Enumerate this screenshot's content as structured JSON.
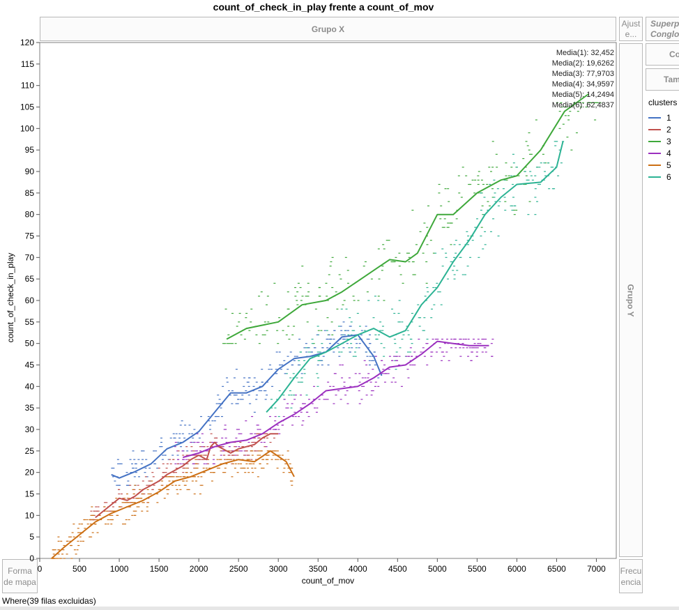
{
  "window": {
    "group_x": "Grupo X",
    "group_y": "Grupo Y",
    "ajuste": "Ajust e...",
    "forma_de_mapa": "Forma de mapa",
    "frecuencia": "Frecu encia",
    "superponer": "Superpo Conglo",
    "right_button_1": "Co",
    "right_button_2": "Tam",
    "where_text": "Where(39 filas excluidas)"
  },
  "colors": {
    "1": "#4472c4",
    "2": "#c0504d",
    "3": "#3ea83a",
    "4": "#9b2fbf",
    "5": "#cc6f14",
    "6": "#2cb394"
  },
  "chart_data": {
    "type": "scatter",
    "title": "count_of_check_in_play frente a count_of_mov",
    "xlabel": "count_of_mov",
    "ylabel": "count_of_check_in_play",
    "xlim": [
      0,
      7250
    ],
    "ylim": [
      0,
      120
    ],
    "x_ticks": [
      0,
      500,
      1000,
      1500,
      2000,
      2500,
      3000,
      3500,
      4000,
      4500,
      5000,
      5500,
      6000,
      6500,
      7000
    ],
    "y_ticks": [
      0,
      5,
      10,
      15,
      20,
      25,
      30,
      35,
      40,
      45,
      50,
      55,
      60,
      65,
      70,
      75,
      80,
      85,
      90,
      95,
      100,
      105,
      110,
      115,
      120
    ],
    "grid": false,
    "legend_title": "clusters",
    "legend_position": "right",
    "annotations": [
      "Media(1): 32,452",
      "Media(2): 19,6262",
      "Media(3): 77,9703",
      "Media(4): 34,9597",
      "Media(5): 14,2494",
      "Media(6): 62,4837"
    ],
    "series": [
      {
        "name": "1",
        "x_range": [
          900,
          4300
        ],
        "y_range": [
          17,
          55
        ],
        "smoother": [
          [
            900,
            19.5
          ],
          [
            1000,
            18.7
          ],
          [
            1200,
            20.2
          ],
          [
            1400,
            22
          ],
          [
            1600,
            25.5
          ],
          [
            1800,
            27
          ],
          [
            2000,
            29.5
          ],
          [
            2200,
            34
          ],
          [
            2400,
            38.5
          ],
          [
            2600,
            38.5
          ],
          [
            2800,
            40
          ],
          [
            3000,
            44
          ],
          [
            3200,
            46.5
          ],
          [
            3400,
            47
          ],
          [
            3600,
            48
          ],
          [
            3800,
            51.5
          ],
          [
            4000,
            52
          ],
          [
            4200,
            47
          ],
          [
            4300,
            42.5
          ]
        ]
      },
      {
        "name": "2",
        "x_range": [
          600,
          3000
        ],
        "y_range": [
          9,
          29
        ],
        "smoother": [
          [
            700,
            9.5
          ],
          [
            900,
            12.5
          ],
          [
            1000,
            14
          ],
          [
            1100,
            13.5
          ],
          [
            1200,
            14.5
          ],
          [
            1300,
            16
          ],
          [
            1400,
            17
          ],
          [
            1500,
            18
          ],
          [
            1600,
            19.5
          ],
          [
            1700,
            20.5
          ],
          [
            1800,
            21.5
          ],
          [
            1900,
            23
          ],
          [
            2000,
            24
          ],
          [
            2100,
            23
          ],
          [
            2150,
            26
          ],
          [
            2200,
            27
          ],
          [
            2250,
            26
          ],
          [
            2300,
            25.5
          ],
          [
            2400,
            24.5
          ],
          [
            2500,
            25.5
          ],
          [
            2600,
            26
          ],
          [
            2700,
            26.5
          ],
          [
            2800,
            28
          ],
          [
            2900,
            29
          ],
          [
            3000,
            29
          ]
        ]
      },
      {
        "name": "3",
        "x_range": [
          2300,
          7100
        ],
        "y_range": [
          50,
          106
        ],
        "smoother": [
          [
            2350,
            51
          ],
          [
            2600,
            53.5
          ],
          [
            3000,
            55
          ],
          [
            3300,
            59
          ],
          [
            3600,
            60
          ],
          [
            3800,
            62
          ],
          [
            4000,
            64.5
          ],
          [
            4200,
            67
          ],
          [
            4400,
            69.5
          ],
          [
            4600,
            69
          ],
          [
            4750,
            71
          ],
          [
            5000,
            80
          ],
          [
            5200,
            80
          ],
          [
            5500,
            85
          ],
          [
            5800,
            88
          ],
          [
            6000,
            89
          ],
          [
            6300,
            95
          ],
          [
            6600,
            104
          ],
          [
            6900,
            108
          ]
        ]
      },
      {
        "name": "4",
        "x_range": [
          1700,
          5700
        ],
        "y_range": [
          22,
          51
        ],
        "smoother": [
          [
            1800,
            23.5
          ],
          [
            2000,
            24.5
          ],
          [
            2200,
            26
          ],
          [
            2400,
            27
          ],
          [
            2600,
            27.5
          ],
          [
            2800,
            29
          ],
          [
            3000,
            31.5
          ],
          [
            3200,
            33.5
          ],
          [
            3400,
            36
          ],
          [
            3600,
            39
          ],
          [
            3800,
            39.5
          ],
          [
            4000,
            40
          ],
          [
            4200,
            42
          ],
          [
            4400,
            44.5
          ],
          [
            4600,
            45
          ],
          [
            4800,
            47.5
          ],
          [
            5000,
            50.5
          ],
          [
            5200,
            50
          ],
          [
            5400,
            49.5
          ],
          [
            5650,
            49.5
          ]
        ]
      },
      {
        "name": "5",
        "x_range": [
          150,
          3200
        ],
        "y_range": [
          0,
          25
        ],
        "smoother": [
          [
            150,
            0
          ],
          [
            300,
            2.5
          ],
          [
            500,
            5.5
          ],
          [
            700,
            8.5
          ],
          [
            900,
            10.5
          ],
          [
            1100,
            12
          ],
          [
            1300,
            13.5
          ],
          [
            1500,
            15.5
          ],
          [
            1700,
            18
          ],
          [
            1900,
            19
          ],
          [
            2100,
            20.5
          ],
          [
            2300,
            22
          ],
          [
            2500,
            23
          ],
          [
            2700,
            22.5
          ],
          [
            2900,
            25
          ],
          [
            3100,
            22.5
          ],
          [
            3200,
            19
          ]
        ]
      },
      {
        "name": "6",
        "x_range": [
          2850,
          6600
        ],
        "y_range": [
          33,
          97
        ],
        "smoother": [
          [
            2850,
            34
          ],
          [
            3000,
            37
          ],
          [
            3200,
            42
          ],
          [
            3400,
            46.5
          ],
          [
            3600,
            48
          ],
          [
            3800,
            50
          ],
          [
            4000,
            52
          ],
          [
            4200,
            53.5
          ],
          [
            4400,
            51.5
          ],
          [
            4600,
            53
          ],
          [
            4800,
            59
          ],
          [
            5000,
            63
          ],
          [
            5200,
            69
          ],
          [
            5400,
            74
          ],
          [
            5600,
            80
          ],
          [
            5800,
            84
          ],
          [
            6000,
            87
          ],
          [
            6300,
            87.5
          ],
          [
            6500,
            91
          ],
          [
            6580,
            97
          ]
        ]
      }
    ]
  }
}
